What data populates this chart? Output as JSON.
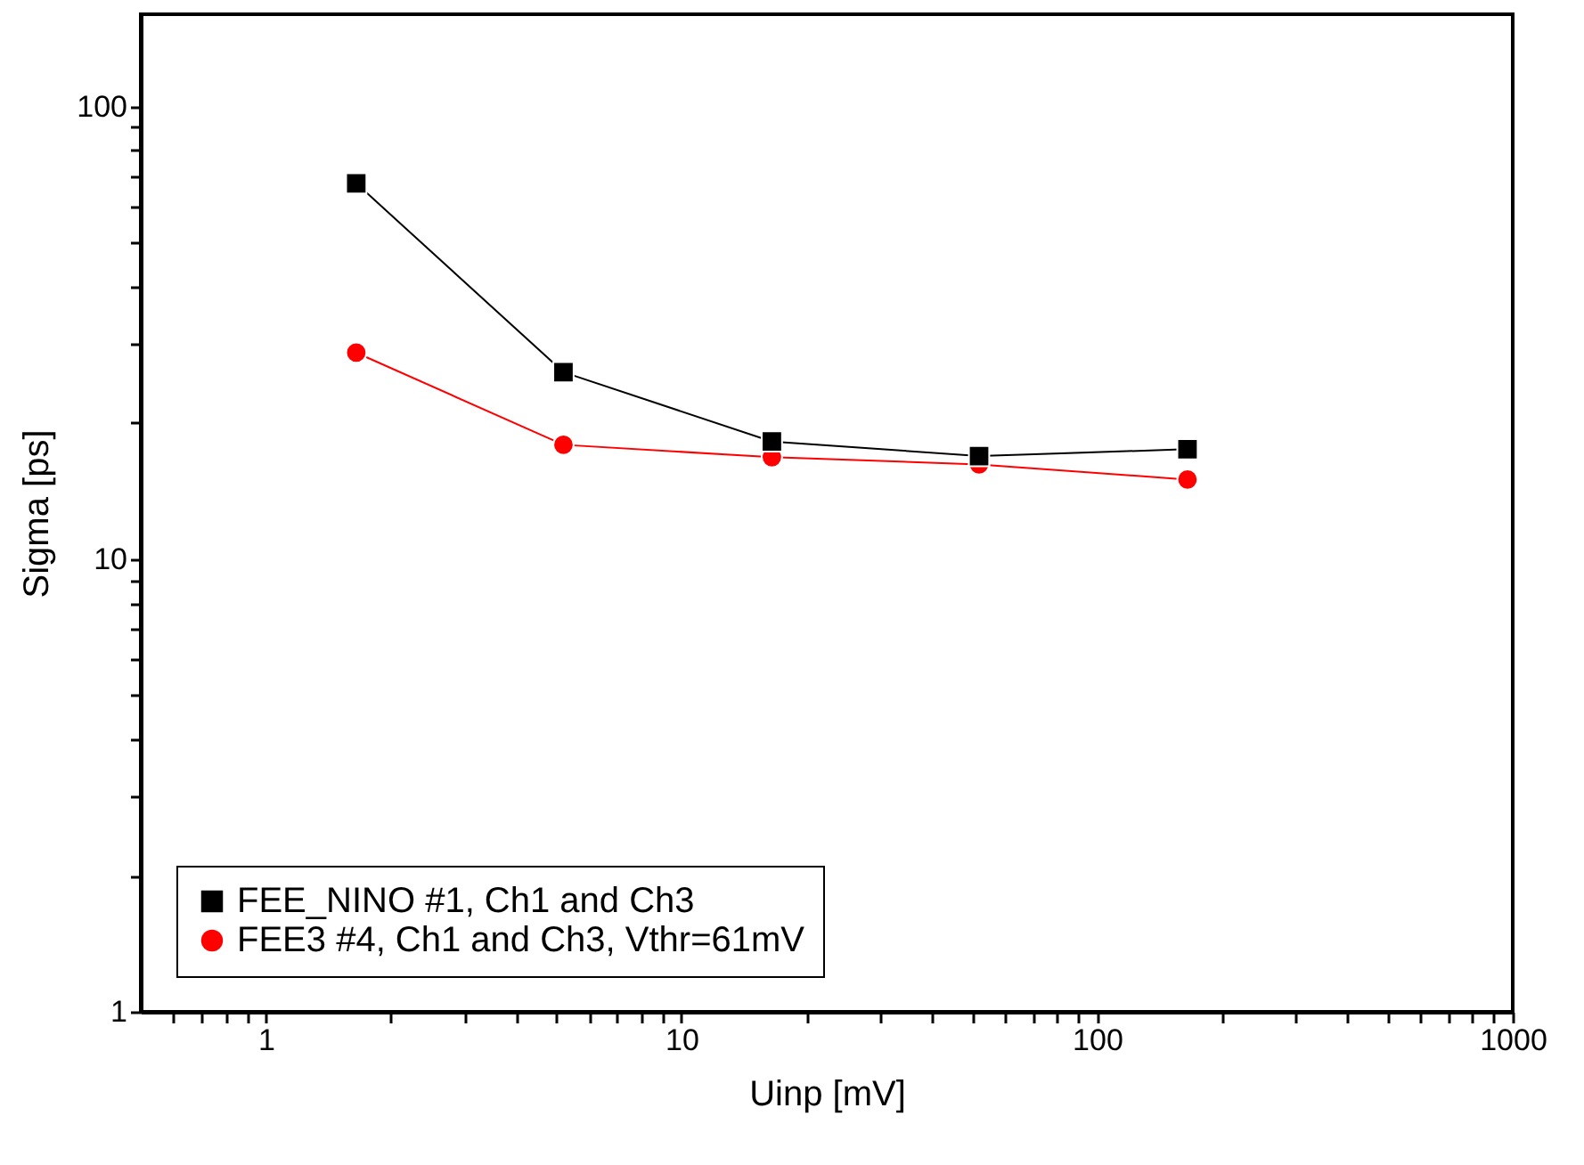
{
  "chart_data": {
    "type": "line",
    "xlabel": "Uinp [mV]",
    "ylabel": "Sigma [ps]",
    "log": "xy",
    "grid": false,
    "legend": "bottom left",
    "xlim": [
      0.5,
      1000
    ],
    "ylim": [
      1,
      160
    ],
    "xticks": [
      {
        "value": 0.6,
        "label": null
      },
      {
        "value": 0.7,
        "label": null
      },
      {
        "value": 0.8,
        "label": null
      },
      {
        "value": 0.9,
        "label": null
      },
      1,
      {
        "value": 2,
        "label": null
      },
      {
        "value": 3,
        "label": null
      },
      {
        "value": 4,
        "label": null
      },
      {
        "value": 5,
        "label": null
      },
      {
        "value": 6,
        "label": null
      },
      {
        "value": 7,
        "label": null
      },
      {
        "value": 8,
        "label": null
      },
      {
        "value": 9,
        "label": null
      },
      10,
      {
        "value": 20,
        "label": null
      },
      {
        "value": 30,
        "label": null
      },
      {
        "value": 40,
        "label": null
      },
      {
        "value": 50,
        "label": null
      },
      {
        "value": 60,
        "label": null
      },
      {
        "value": 70,
        "label": null
      },
      {
        "value": 80,
        "label": null
      },
      {
        "value": 90,
        "label": null
      },
      100,
      {
        "value": 200,
        "label": null
      },
      {
        "value": 300,
        "label": null
      },
      {
        "value": 400,
        "label": null
      },
      {
        "value": 500,
        "label": null
      },
      {
        "value": 600,
        "label": null
      },
      {
        "value": 700,
        "label": null
      },
      {
        "value": 800,
        "label": null
      },
      {
        "value": 900,
        "label": null
      },
      1000
    ],
    "yticks": [
      1,
      {
        "value": 2,
        "label": null
      },
      {
        "value": 3,
        "label": null
      },
      {
        "value": 4,
        "label": null
      },
      {
        "value": 5,
        "label": null
      },
      {
        "value": 6,
        "label": null
      },
      {
        "value": 7,
        "label": null
      },
      {
        "value": 8,
        "label": null
      },
      {
        "value": 9,
        "label": null
      },
      10,
      {
        "value": 20,
        "label": null
      },
      {
        "value": 30,
        "label": null
      },
      {
        "value": 40,
        "label": null
      },
      {
        "value": 50,
        "label": null
      },
      {
        "value": 60,
        "label": null
      },
      {
        "value": 70,
        "label": null
      },
      {
        "value": 80,
        "label": null
      },
      {
        "value": 90,
        "label": null
      },
      100
    ],
    "x": [
      1.65,
      5.2,
      16.5,
      52,
      165
    ],
    "series": [
      {
        "name": "FEE_NINO #1, Ch1 and Ch3",
        "color": "#000000",
        "marker": "square",
        "values": [
          67.7,
          25.9,
          18.2,
          16.9,
          17.5
        ]
      },
      {
        "name": "FEE3 #4, Ch1 and Ch3, Vthr=61mV",
        "color": "#ff0000",
        "marker": "circle",
        "values": [
          28.6,
          17.9,
          16.8,
          16.2,
          15.0
        ]
      }
    ]
  }
}
